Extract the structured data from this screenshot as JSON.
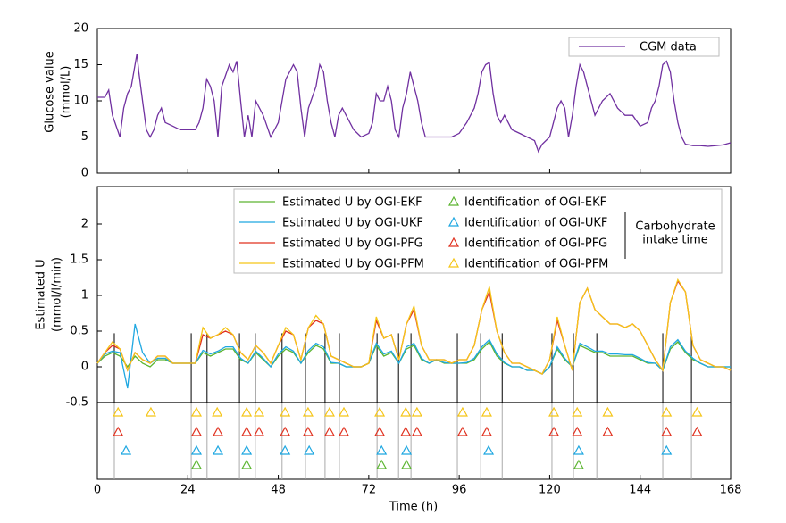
{
  "chart_data": [
    {
      "type": "line",
      "ylabel": [
        "Glucose value",
        "(mmol/L)"
      ],
      "xlim": [
        0,
        168
      ],
      "ylim": [
        0,
        20
      ],
      "yticks": [
        0,
        5,
        10,
        15,
        20
      ],
      "legend": "upper right",
      "x": [
        0,
        2,
        3,
        4,
        6,
        7,
        8,
        9,
        10,
        10.5,
        11,
        12,
        13,
        14,
        15,
        16,
        17,
        18,
        20,
        22,
        24,
        26,
        27,
        28,
        29,
        30,
        31,
        32,
        33,
        35,
        36,
        37,
        38,
        39,
        40,
        41,
        42,
        44,
        46,
        48,
        50,
        52,
        53,
        54,
        55,
        56,
        58,
        59,
        60,
        61,
        62,
        63,
        64,
        65,
        66,
        68,
        70,
        72,
        73,
        74,
        75,
        76,
        77,
        78,
        79,
        80,
        81,
        82,
        83,
        84,
        85,
        86,
        87,
        88,
        90,
        92,
        94,
        96,
        98,
        100,
        101,
        102,
        103,
        104,
        105,
        106,
        107,
        108,
        109,
        110,
        112,
        114,
        116,
        117,
        118,
        120,
        122,
        123,
        124,
        125,
        126,
        127,
        128,
        129,
        130,
        131,
        132,
        134,
        136,
        137,
        138,
        140,
        142,
        144,
        146,
        147,
        148,
        149,
        150,
        151,
        152,
        153,
        154,
        155,
        156,
        158,
        160,
        162,
        164,
        166,
        168
      ],
      "series": [
        {
          "name": "CGM data",
          "color": "#7030a0",
          "values": [
            10.5,
            10.5,
            11.5,
            8,
            5,
            9,
            11,
            12,
            15,
            16.5,
            14,
            10,
            6,
            5,
            6,
            8,
            9,
            7,
            6.5,
            6,
            6,
            6,
            7,
            9,
            13,
            12,
            10,
            5,
            12,
            15,
            14,
            15.5,
            10,
            5,
            8,
            5,
            10,
            8,
            5,
            7,
            13,
            15,
            14,
            9,
            5,
            9,
            12,
            15,
            14,
            10,
            7,
            5,
            8,
            9,
            8,
            6,
            5,
            5.5,
            7,
            11,
            10,
            10,
            12,
            10,
            6,
            5,
            9,
            11,
            14,
            12,
            10,
            7,
            5,
            5,
            5,
            5,
            5,
            5.5,
            7,
            9,
            11,
            14,
            15,
            15.3,
            11,
            8,
            7,
            8,
            7,
            6,
            5.5,
            5,
            4.5,
            3,
            4,
            5,
            9,
            10,
            9,
            5,
            8,
            12,
            15,
            14,
            12,
            10,
            8,
            10,
            11,
            10,
            9,
            8,
            8,
            6.5,
            7,
            9,
            10,
            12,
            15,
            15.5,
            14,
            10,
            7,
            5,
            4,
            3.8,
            3.8,
            3.7,
            3.8,
            3.9,
            4.2
          ]
        }
      ]
    },
    {
      "type": "line",
      "ylabel": [
        "Estimated U",
        "(mmol/l/min)"
      ],
      "xlabel": "Time (h)",
      "xlim": [
        0,
        168
      ],
      "xticks": [
        0,
        24,
        48,
        72,
        96,
        120,
        144,
        168
      ],
      "ylim": [
        -1.575,
        2.525
      ],
      "yticks": [
        -0.5,
        0,
        0.5,
        1,
        1.5,
        2
      ],
      "legend": "upper right",
      "x": [
        0,
        2,
        4,
        6,
        8,
        10,
        12,
        14,
        16,
        18,
        20,
        22,
        24,
        26,
        28,
        30,
        32,
        34,
        36,
        38,
        40,
        42,
        44,
        46,
        48,
        50,
        52,
        54,
        56,
        58,
        60,
        62,
        64,
        66,
        68,
        70,
        72,
        74,
        76,
        78,
        80,
        82,
        84,
        86,
        88,
        90,
        92,
        94,
        96,
        98,
        100,
        102,
        104,
        106,
        108,
        110,
        112,
        114,
        116,
        118,
        120,
        122,
        124,
        126,
        128,
        130,
        132,
        134,
        136,
        138,
        140,
        142,
        144,
        146,
        148,
        150,
        152,
        154,
        156,
        158,
        160,
        162,
        164,
        166,
        168
      ],
      "series": [
        {
          "name": "Estimated U by OGI-EKF",
          "color": "#5cb531",
          "values": [
            0.05,
            0.15,
            0.2,
            0.15,
            0,
            0.15,
            0.05,
            0,
            0.1,
            0.1,
            0.05,
            0.05,
            0.05,
            0.05,
            0.2,
            0.15,
            0.2,
            0.25,
            0.25,
            0.1,
            0.05,
            0.2,
            0.1,
            0,
            0.15,
            0.25,
            0.2,
            0.05,
            0.2,
            0.3,
            0.25,
            0.05,
            0.05,
            0,
            0,
            0,
            0.05,
            0.3,
            0.15,
            0.2,
            0.05,
            0.25,
            0.3,
            0.1,
            0.05,
            0.1,
            0.05,
            0.05,
            0.05,
            0.05,
            0.1,
            0.25,
            0.35,
            0.15,
            0.05,
            0,
            0,
            -0.05,
            -0.05,
            -0.1,
            0,
            0.25,
            0.1,
            0,
            0.3,
            0.25,
            0.2,
            0.2,
            0.15,
            0.15,
            0.15,
            0.15,
            0.1,
            0.05,
            0.05,
            -0.05,
            0.25,
            0.35,
            0.2,
            0.1,
            0.05,
            0,
            0,
            0,
            0
          ]
        },
        {
          "name": "Estimated U by OGI-UKF",
          "color": "#1ea7e1",
          "values": [
            0.05,
            0.18,
            0.22,
            0.2,
            -0.3,
            0.6,
            0.2,
            0.05,
            0.12,
            0.12,
            0.05,
            0.05,
            0.05,
            0.05,
            0.23,
            0.18,
            0.22,
            0.28,
            0.28,
            0.12,
            0.05,
            0.22,
            0.12,
            0,
            0.18,
            0.28,
            0.22,
            0.05,
            0.23,
            0.33,
            0.28,
            0.06,
            0.05,
            0,
            0,
            0,
            0.05,
            0.33,
            0.18,
            0.22,
            0.05,
            0.28,
            0.33,
            0.12,
            0.05,
            0.1,
            0.06,
            0.05,
            0.05,
            0.06,
            0.12,
            0.28,
            0.38,
            0.18,
            0.06,
            0,
            0,
            -0.05,
            -0.05,
            -0.1,
            0,
            0.28,
            0.12,
            0,
            0.33,
            0.28,
            0.22,
            0.22,
            0.18,
            0.18,
            0.17,
            0.17,
            0.12,
            0.06,
            0.05,
            -0.05,
            0.28,
            0.38,
            0.22,
            0.12,
            0.05,
            0,
            0,
            0,
            0
          ]
        },
        {
          "name": "Estimated U by OGI-PFG",
          "color": "#e0301e",
          "values": [
            0.05,
            0.2,
            0.3,
            0.25,
            -0.05,
            0.2,
            0.1,
            0.05,
            0.15,
            0.15,
            0.05,
            0.05,
            0.05,
            0.05,
            0.45,
            0.4,
            0.45,
            0.5,
            0.45,
            0.2,
            0.1,
            0.3,
            0.2,
            0.05,
            0.3,
            0.5,
            0.45,
            0.1,
            0.55,
            0.65,
            0.6,
            0.15,
            0.1,
            0.05,
            0,
            0,
            0.05,
            0.65,
            0.4,
            0.45,
            0.1,
            0.6,
            0.8,
            0.3,
            0.1,
            0.1,
            0.1,
            0.05,
            0.1,
            0.1,
            0.3,
            0.8,
            1.05,
            0.5,
            0.2,
            0.05,
            0.05,
            0,
            -0.05,
            -0.1,
            0.1,
            0.65,
            0.3,
            -0.05,
            0.9,
            1.1,
            0.8,
            0.7,
            0.6,
            0.6,
            0.55,
            0.6,
            0.5,
            0.3,
            0.1,
            -0.05,
            0.9,
            1.2,
            1.05,
            0.3,
            0.1,
            0.05,
            0,
            0,
            -0.05
          ]
        },
        {
          "name": "Estimated U by OGI-PFM",
          "color": "#f5c518",
          "values": [
            0.05,
            0.2,
            0.35,
            0.25,
            -0.05,
            0.2,
            0.1,
            0.05,
            0.15,
            0.15,
            0.05,
            0.05,
            0.05,
            0.05,
            0.55,
            0.4,
            0.45,
            0.55,
            0.45,
            0.2,
            0.1,
            0.3,
            0.2,
            0.05,
            0.3,
            0.55,
            0.45,
            0.1,
            0.55,
            0.72,
            0.6,
            0.15,
            0.1,
            0.05,
            0,
            0,
            0.05,
            0.7,
            0.4,
            0.45,
            0.1,
            0.6,
            0.85,
            0.3,
            0.1,
            0.1,
            0.1,
            0.05,
            0.1,
            0.1,
            0.3,
            0.8,
            1.12,
            0.5,
            0.2,
            0.05,
            0.05,
            0,
            -0.05,
            -0.1,
            0.1,
            0.7,
            0.3,
            -0.05,
            0.9,
            1.1,
            0.8,
            0.7,
            0.6,
            0.6,
            0.55,
            0.6,
            0.5,
            0.3,
            0.1,
            -0.05,
            0.9,
            1.22,
            1.05,
            0.3,
            0.1,
            0.05,
            0,
            0,
            -0.05
          ]
        }
      ],
      "identifications": [
        {
          "name": "Identification of OGI-EKF",
          "color": "#5cb531",
          "x": [
            26.3,
            39.6,
            75.4,
            82,
            127.7
          ]
        },
        {
          "name": "Identification of OGI-UKF",
          "color": "#1ea7e1",
          "x": [
            7.6,
            26.3,
            32,
            39.6,
            49.8,
            56.2,
            75.4,
            82,
            103.8,
            127.7,
            151
          ]
        },
        {
          "name": "Identification of OGI-PFG",
          "color": "#e0301e",
          "x": [
            5.5,
            26.3,
            32,
            39.6,
            42.9,
            49.8,
            55.9,
            61.6,
            65.4,
            74.9,
            81.8,
            84.8,
            96.9,
            103.3,
            121.1,
            127.3,
            135.4,
            151,
            159.1
          ]
        },
        {
          "name": "Identification of OGI-PFM",
          "color": "#f5c518",
          "x": [
            5.5,
            14.2,
            26.3,
            31.8,
            39.6,
            42.9,
            49.8,
            55.9,
            61.6,
            65.4,
            74.9,
            81.8,
            84.8,
            96.9,
            103.3,
            121.1,
            127.3,
            135.4,
            151,
            159.1
          ]
        }
      ],
      "carbohydrate_label": [
        "Carbohydrate",
        "intake time"
      ],
      "carbohydrate_times": [
        4.5,
        24.9,
        29.1,
        37.7,
        41.9,
        49,
        55.2,
        60.4,
        64.2,
        74.2,
        79.9,
        83.2,
        95.5,
        101.7,
        107.4,
        120.6,
        126.3,
        132.5,
        150,
        157.6
      ]
    }
  ]
}
